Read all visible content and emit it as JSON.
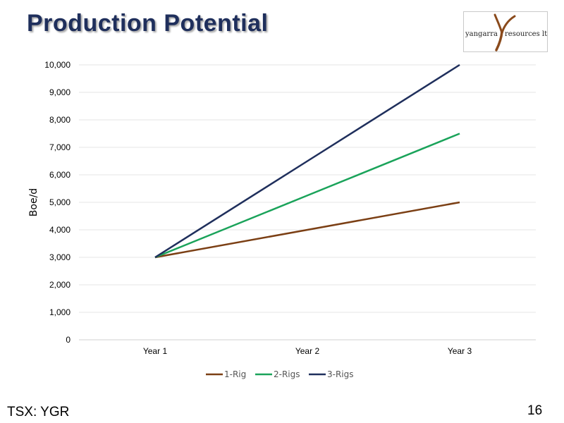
{
  "slide": {
    "title": "Production Potential",
    "footer_left": "TSX: YGR",
    "page_number": "16",
    "logo_text": "yangarra resources ltd."
  },
  "colors": {
    "title": "#1f2f5c",
    "rig1": "#7b3f14",
    "rig2": "#1aa35a",
    "rig3": "#1f2f5c",
    "gridline": "#e6e6e6"
  },
  "chart_data": {
    "type": "line",
    "categories": [
      "Year 1",
      "Year 2",
      "Year 3"
    ],
    "series": [
      {
        "name": "1-Rig",
        "values": [
          3000,
          4000,
          5000
        ]
      },
      {
        "name": "2-Rigs",
        "values": [
          3000,
          5250,
          7500
        ]
      },
      {
        "name": "3-Rigs",
        "values": [
          3000,
          6500,
          10000
        ]
      }
    ],
    "ylabel": "Boe/d",
    "xlabel": "",
    "ylim": [
      0,
      10000
    ],
    "yticks": [
      "0",
      "1,000",
      "2,000",
      "3,000",
      "4,000",
      "5,000",
      "6,000",
      "7,000",
      "8,000",
      "9,000",
      "10,000"
    ],
    "grid": true,
    "legend_position": "bottom"
  }
}
